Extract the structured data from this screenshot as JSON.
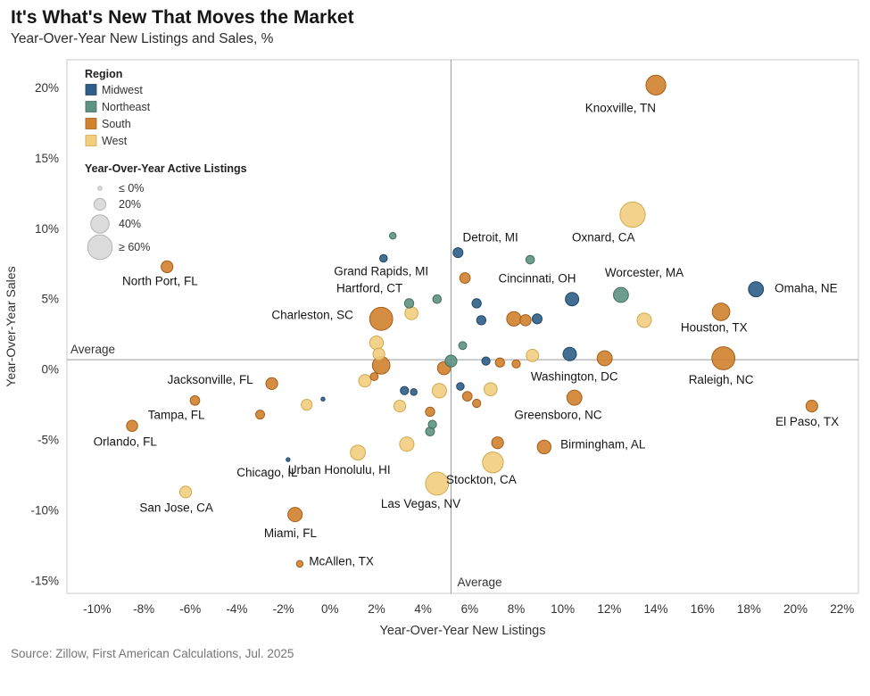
{
  "header": {
    "title": "It's What's New That Moves the Market",
    "subtitle": "Year-Over-Year New Listings and Sales, %"
  },
  "footer": {
    "source": "Source: Zillow, First American Calculations, Jul. 2025"
  },
  "chart_data": {
    "type": "scatter",
    "xlabel": "Year-Over-Year New Listings",
    "ylabel": "Year-Over-Year Sales",
    "xlim": [
      -11.3,
      22.7
    ],
    "ylim": [
      -15.9,
      22.0
    ],
    "x_ticks": [
      -10,
      -8,
      -6,
      -4,
      -2,
      0,
      2,
      4,
      6,
      8,
      10,
      12,
      14,
      16,
      18,
      20,
      22
    ],
    "y_ticks": [
      -15,
      -10,
      -5,
      0,
      5,
      10,
      15,
      20
    ],
    "tick_suffix": "%",
    "average_x": 5.2,
    "average_y": 0.7,
    "average_label": "Average",
    "grid": false,
    "legend": {
      "region_title": "Region",
      "regions": [
        {
          "name": "Midwest",
          "color": "#2F5E88",
          "stroke": "#1F4766"
        },
        {
          "name": "Northeast",
          "color": "#5E9284",
          "stroke": "#426F60"
        },
        {
          "name": "South",
          "color": "#D0812E",
          "stroke": "#A65F1B"
        },
        {
          "name": "West",
          "color": "#F2CD7E",
          "stroke": "#D1A94F"
        }
      ],
      "size_title": "Year-Over-Year Active Listings",
      "size_items": [
        {
          "label": "≤ 0%",
          "value": 0
        },
        {
          "label": "20%",
          "value": 20
        },
        {
          "label": "40%",
          "value": 40
        },
        {
          "label": "≥ 60%",
          "value": 60
        }
      ],
      "size_color": "#dcdcdc",
      "size_stroke": "#b3b3b3"
    },
    "points": [
      {
        "city": "Knoxville, TN",
        "region": "South",
        "x": 14.0,
        "y": 20.2,
        "size": 45,
        "lx": 14.0,
        "ly": 18.3,
        "anchor": "end"
      },
      {
        "city": "Oxnard, CA",
        "region": "West",
        "x": 13.0,
        "y": 11.0,
        "size": 62,
        "lx": 13.1,
        "ly": 9.1,
        "anchor": "end"
      },
      {
        "city": "Omaha, NE",
        "region": "Midwest",
        "x": 18.3,
        "y": 5.7,
        "size": 30,
        "lx": 19.1,
        "ly": 5.5,
        "anchor": "start"
      },
      {
        "city": "Worcester, MA",
        "region": "Northeast",
        "x": 12.5,
        "y": 5.3,
        "size": 30,
        "lx": 13.5,
        "ly": 6.6,
        "anchor": "middle"
      },
      {
        "city": "Cincinnati, OH",
        "region": "Midwest",
        "x": 10.4,
        "y": 5.0,
        "size": 25,
        "lx": 8.9,
        "ly": 6.2,
        "anchor": "middle"
      },
      {
        "city": "Detroit, MI",
        "region": "Midwest",
        "x": 5.5,
        "y": 8.3,
        "size": 14,
        "lx": 5.7,
        "ly": 9.1,
        "anchor": "start"
      },
      {
        "city": "Grand Rapids, MI",
        "region": "Midwest",
        "x": 2.3,
        "y": 7.9,
        "size": 7,
        "lx": 2.2,
        "ly": 6.7,
        "anchor": "middle"
      },
      {
        "city": "Hartford, CT",
        "region": "Northeast",
        "x": 3.4,
        "y": 4.7,
        "size": 12,
        "lx": 1.7,
        "ly": 5.5,
        "anchor": "middle"
      },
      {
        "city": "North Port, FL",
        "region": "South",
        "x": -7.0,
        "y": 7.3,
        "size": 20,
        "lx": -7.3,
        "ly": 6.0,
        "anchor": "middle"
      },
      {
        "city": "Charleston, SC",
        "region": "South",
        "x": 2.2,
        "y": 3.6,
        "size": 55,
        "lx": 1.0,
        "ly": 3.6,
        "anchor": "end"
      },
      {
        "city": "Houston, TX",
        "region": "South",
        "x": 16.8,
        "y": 4.1,
        "size": 38,
        "lx": 16.5,
        "ly": 2.7,
        "anchor": "middle"
      },
      {
        "city": "Raleigh, NC",
        "region": "South",
        "x": 16.9,
        "y": 0.8,
        "size": 55,
        "lx": 16.8,
        "ly": -1.0,
        "anchor": "middle"
      },
      {
        "city": "Washington, DC",
        "region": "Midwest",
        "x": 10.3,
        "y": 1.1,
        "size": 25,
        "lx": 10.5,
        "ly": -0.8,
        "anchor": "middle"
      },
      {
        "city": "El Paso, TX",
        "region": "South",
        "x": 20.7,
        "y": -2.6,
        "size": 20,
        "lx": 20.5,
        "ly": -4.0,
        "anchor": "middle"
      },
      {
        "city": "Greensboro, NC",
        "region": "South",
        "x": 10.5,
        "y": -2.0,
        "size": 30,
        "lx": 9.8,
        "ly": -3.5,
        "anchor": "middle"
      },
      {
        "city": "Birmingham, AL",
        "region": "South",
        "x": 9.2,
        "y": -5.5,
        "size": 26,
        "lx": 9.9,
        "ly": -5.6,
        "anchor": "start"
      },
      {
        "city": "Jacksonville, FL",
        "region": "South",
        "x": -2.5,
        "y": -1.0,
        "size": 20,
        "lx": -3.3,
        "ly": -1.0,
        "anchor": "end"
      },
      {
        "city": "Tampa, FL",
        "region": "South",
        "x": -5.8,
        "y": -2.2,
        "size": 13,
        "lx": -6.6,
        "ly": -3.5,
        "anchor": "middle"
      },
      {
        "city": "Orlando, FL",
        "region": "South",
        "x": -8.5,
        "y": -4.0,
        "size": 18,
        "lx": -8.8,
        "ly": -5.4,
        "anchor": "middle"
      },
      {
        "city": "San Jose, CA",
        "region": "West",
        "x": -6.2,
        "y": -8.7,
        "size": 20,
        "lx": -6.6,
        "ly": -10.1,
        "anchor": "middle"
      },
      {
        "city": "Chicago, IL",
        "region": "Midwest",
        "x": -1.8,
        "y": -6.4,
        "size": 0,
        "lx": -2.7,
        "ly": -7.6,
        "anchor": "middle"
      },
      {
        "city": "Urban Honolulu, HI",
        "region": "West",
        "x": 1.2,
        "y": -5.9,
        "size": 30,
        "lx": 0.4,
        "ly": -7.4,
        "anchor": "middle"
      },
      {
        "city": "Miami, FL",
        "region": "South",
        "x": -1.5,
        "y": -10.3,
        "size": 28,
        "lx": -1.7,
        "ly": -11.9,
        "anchor": "middle"
      },
      {
        "city": "McAllen, TX",
        "region": "South",
        "x": -1.3,
        "y": -13.8,
        "size": 4,
        "lx": -0.9,
        "ly": -13.9,
        "anchor": "start"
      },
      {
        "city": "Las Vegas, NV",
        "region": "West",
        "x": 4.6,
        "y": -8.1,
        "size": 55,
        "lx": 3.9,
        "ly": -9.8,
        "anchor": "middle"
      },
      {
        "city": "Stockton, CA",
        "region": "West",
        "x": 7.0,
        "y": -6.6,
        "size": 48,
        "lx": 6.5,
        "ly": -8.1,
        "anchor": "middle"
      },
      {
        "region": "Northeast",
        "x": 2.7,
        "y": 9.5,
        "size": 4
      },
      {
        "region": "South",
        "x": 5.8,
        "y": 6.5,
        "size": 16
      },
      {
        "region": "Northeast",
        "x": 8.6,
        "y": 7.8,
        "size": 10
      },
      {
        "region": "Northeast",
        "x": 4.6,
        "y": 5.0,
        "size": 10
      },
      {
        "region": "Midwest",
        "x": 6.3,
        "y": 4.7,
        "size": 12
      },
      {
        "region": "West",
        "x": 3.5,
        "y": 4.0,
        "size": 24
      },
      {
        "region": "South",
        "x": 7.9,
        "y": 3.6,
        "size": 28
      },
      {
        "region": "South",
        "x": 8.4,
        "y": 3.5,
        "size": 18
      },
      {
        "region": "Midwest",
        "x": 8.9,
        "y": 3.6,
        "size": 14
      },
      {
        "region": "Midwest",
        "x": 6.5,
        "y": 3.5,
        "size": 12
      },
      {
        "region": "West",
        "x": 13.5,
        "y": 3.5,
        "size": 28
      },
      {
        "region": "West",
        "x": 2.0,
        "y": 1.9,
        "size": 26
      },
      {
        "region": "West",
        "x": 2.1,
        "y": 1.1,
        "size": 20
      },
      {
        "region": "South",
        "x": 2.2,
        "y": 0.3,
        "size": 38
      },
      {
        "region": "Northeast",
        "x": 5.7,
        "y": 1.7,
        "size": 8
      },
      {
        "region": "Northeast",
        "x": 5.2,
        "y": 0.6,
        "size": 20
      },
      {
        "region": "South",
        "x": 4.9,
        "y": 0.1,
        "size": 24
      },
      {
        "region": "Midwest",
        "x": 6.7,
        "y": 0.6,
        "size": 9
      },
      {
        "region": "South",
        "x": 7.3,
        "y": 0.5,
        "size": 12
      },
      {
        "region": "South",
        "x": 8.0,
        "y": 0.4,
        "size": 9
      },
      {
        "region": "West",
        "x": 8.7,
        "y": 1.0,
        "size": 22
      },
      {
        "region": "South",
        "x": 11.8,
        "y": 0.8,
        "size": 30
      },
      {
        "region": "West",
        "x": 1.5,
        "y": -0.8,
        "size": 22
      },
      {
        "region": "South",
        "x": 1.9,
        "y": -0.5,
        "size": 8
      },
      {
        "region": "Midwest",
        "x": 3.2,
        "y": -1.5,
        "size": 9
      },
      {
        "region": "Midwest",
        "x": 3.6,
        "y": -1.6,
        "size": 4
      },
      {
        "region": "West",
        "x": 3.0,
        "y": -2.6,
        "size": 20
      },
      {
        "region": "South",
        "x": 4.3,
        "y": -3.0,
        "size": 12
      },
      {
        "region": "West",
        "x": 4.7,
        "y": -1.5,
        "size": 28
      },
      {
        "region": "Midwest",
        "x": 5.6,
        "y": -1.2,
        "size": 7
      },
      {
        "region": "South",
        "x": 5.9,
        "y": -1.9,
        "size": 13
      },
      {
        "region": "West",
        "x": 6.9,
        "y": -1.4,
        "size": 24
      },
      {
        "region": "Northeast",
        "x": 4.4,
        "y": -3.9,
        "size": 9
      },
      {
        "region": "Northeast",
        "x": 4.3,
        "y": -4.4,
        "size": 11
      },
      {
        "region": "West",
        "x": 3.3,
        "y": -5.3,
        "size": 28
      },
      {
        "region": "South",
        "x": 7.2,
        "y": -5.2,
        "size": 20
      },
      {
        "region": "West",
        "x": -1.0,
        "y": -2.5,
        "size": 17
      },
      {
        "region": "South",
        "x": -3.0,
        "y": -3.2,
        "size": 11
      },
      {
        "region": "Midwest",
        "x": -0.3,
        "y": -2.1,
        "size": 0
      },
      {
        "region": "South",
        "x": 6.3,
        "y": -2.4,
        "size": 9
      }
    ]
  }
}
